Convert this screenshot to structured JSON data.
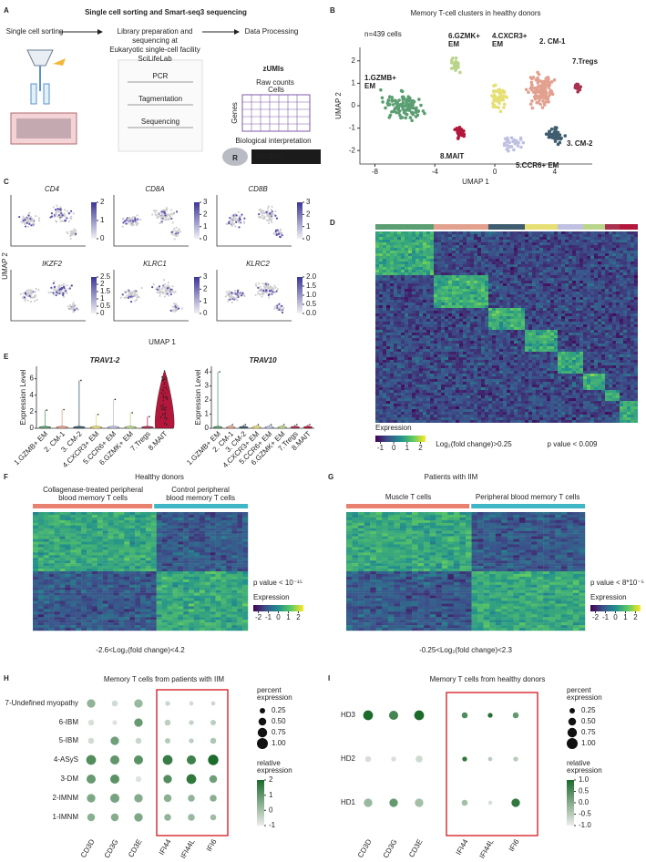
{
  "figure": {
    "A": {
      "label": "A",
      "title": "Single cell sorting and Smart-seq3 sequencing",
      "steps": [
        [
          "Single cell sorting"
        ],
        [
          "Library preparation and",
          "sequencing at",
          "Eukaryotic single-cell facility",
          "SciLifeLab"
        ],
        [
          "Data Processing"
        ]
      ],
      "schematic_steps": [
        "PCR",
        "Tagmentation",
        "Sequencing"
      ],
      "zumis": "zUMIs",
      "raw_counts": "Raw counts",
      "cells": "Cells",
      "genes": "Genes",
      "interpretation": "Biological interpretation",
      "r_logo": "R",
      "seurat": "SEURAT"
    },
    "B": {
      "label": "B",
      "title": "Memory T-cell clusters in healthy donors",
      "n_cells": "n=439 cells",
      "xlabel": "UMAP 1",
      "ylabel": "UMAP 2",
      "xlim": [
        -9,
        6.5
      ],
      "ylim": [
        -2.6,
        2.6
      ],
      "xticks": [
        -8,
        -4,
        0,
        4
      ],
      "yticks": [
        -2,
        -1,
        0,
        1,
        2
      ],
      "clusters": [
        {
          "label": [
            "1.GZMB+",
            "EM"
          ],
          "color": "#5b9e72"
        },
        {
          "label": [
            "2. CM-1"
          ],
          "color": "#e2a08f"
        },
        {
          "label": [
            "3. CM-2"
          ],
          "color": "#3f5d6f"
        },
        {
          "label": [
            "4.CXCR3+",
            "EM"
          ],
          "color": "#e6df74"
        },
        {
          "label": [
            "5.CCR6+ EM"
          ],
          "color": "#bfc0e2"
        },
        {
          "label": [
            "6.GZMK+",
            "EM"
          ],
          "color": "#b9d58a"
        },
        {
          "label": [
            "7.Tregs"
          ],
          "color": "#a8324f"
        },
        {
          "label": [
            "8.MAIT"
          ],
          "color": "#b3173b"
        }
      ]
    },
    "C": {
      "label": "C",
      "xlabel": "UMAP 1",
      "ylabel": "UMAP 2",
      "panels": [
        {
          "gene": "CD4",
          "scale_ticks": [
            0,
            1,
            2
          ]
        },
        {
          "gene": "CD8A",
          "scale_ticks": [
            0,
            1,
            2,
            3
          ]
        },
        {
          "gene": "CD8B",
          "scale_ticks": [
            0,
            1,
            2,
            3
          ]
        },
        {
          "gene": "IKZF2",
          "scale_ticks": [
            0,
            0.5,
            1,
            1.5,
            2,
            2.5
          ]
        },
        {
          "gene": "KLRC1",
          "scale_ticks": [
            0,
            1,
            2,
            3
          ]
        },
        {
          "gene": "KLRC2",
          "scale_ticks": [
            {
              "value": 0,
              "label": "0.0"
            },
            0.5,
            {
              "value": 1,
              "label": "1.0"
            },
            1.5,
            {
              "value": 2,
              "label": "2.0"
            }
          ]
        }
      ]
    },
    "D": {
      "label": "D",
      "legend_title": "Expression",
      "legend_ticks": [
        -1,
        0,
        1,
        2
      ],
      "fold_change": "Log₂(fold change)>0.25",
      "pvalue": "p value < 0.009"
    },
    "E": {
      "label": "E",
      "ylabel": "Expression Level",
      "categories": [
        "1.GZMB+ EM",
        "2. CM-1",
        "3. CM-2",
        "4.CXCR3+ EM",
        "5.CCR6+ EM",
        "6.GZMK+ EM",
        "7.Tregs",
        "8.MAIT"
      ],
      "plots": [
        {
          "gene": "TRAV1-2",
          "ylim": [
            0,
            7.5
          ],
          "yticks": [
            0,
            2,
            4,
            6
          ]
        },
        {
          "gene": "TRAV10",
          "ylim": [
            0,
            4.4
          ],
          "yticks": [
            0,
            1,
            2,
            3,
            4
          ]
        }
      ]
    },
    "F": {
      "label": "F",
      "title": "Healthy donors",
      "group1": [
        "Collagenase-treated peripheral",
        "blood memory T cells"
      ],
      "group2": [
        "Control peripheral",
        "blood memory T cells"
      ],
      "pvalue": "p value < 10⁻¹⁵",
      "legend_title": "Expression",
      "legend_ticks": [
        -2,
        -1,
        0,
        1,
        2
      ],
      "fold_change": "-2.6<Log₂(fold change)<4.2"
    },
    "G": {
      "label": "G",
      "title": "Patients with IIM",
      "group1": [
        "Muscle T cells"
      ],
      "group2": [
        "Peripheral blood memory T cells"
      ],
      "pvalue": "p value < 8*10⁻⁵",
      "legend_title": "Expression",
      "legend_ticks": [
        -2,
        -1,
        0,
        1,
        2
      ],
      "fold_change": "-0.25<Log₂(fold change)<2.3"
    },
    "H": {
      "label": "H",
      "title": "Memory T cells from patients with IIM",
      "rows": [
        "7-Undefined myopathy",
        "6-IBM",
        "5-IBM",
        "4-ASyS",
        "3-DM",
        "2-IMNM",
        "1-IMNM"
      ],
      "columns": [
        "CD3D",
        "CD3G",
        "CD3E",
        "IFI44",
        "IFI44L",
        "IFI6"
      ],
      "percent": [
        [
          0.6,
          0.3,
          0.6,
          0.2,
          0.15,
          0.15
        ],
        [
          0.3,
          0.2,
          0.6,
          0.3,
          0.2,
          0.25
        ],
        [
          0.3,
          0.6,
          0.3,
          0.25,
          0.2,
          0.3
        ],
        [
          0.8,
          0.7,
          0.7,
          0.8,
          0.7,
          0.9
        ],
        [
          0.7,
          0.7,
          0.3,
          0.6,
          0.8,
          0.5
        ],
        [
          0.6,
          0.7,
          0.6,
          0.5,
          0.4,
          0.4
        ],
        [
          0.5,
          0.5,
          0.6,
          0.4,
          0.4,
          0.3
        ]
      ],
      "relative": [
        [
          0.3,
          -0.6,
          0.2,
          -0.5,
          -0.6,
          -0.5
        ],
        [
          -0.7,
          -0.8,
          0.9,
          -0.3,
          -0.4,
          -0.3
        ],
        [
          -0.6,
          0.8,
          -0.5,
          -0.2,
          -0.3,
          -0.1
        ],
        [
          1.2,
          1.0,
          1.1,
          1.6,
          1.5,
          2.0
        ],
        [
          0.9,
          1.1,
          -0.8,
          1.2,
          1.7,
          0.8
        ],
        [
          0.6,
          0.7,
          0.5,
          0.4,
          0.3,
          0.4
        ],
        [
          0.4,
          0.5,
          0.6,
          0.3,
          0.2,
          0.1
        ]
      ],
      "size_title": [
        "percent",
        "expression"
      ],
      "size_ticks": [
        0.25,
        {
          "value": 0.5,
          "label": "0.50"
        },
        0.75,
        {
          "value": 1,
          "label": "1.00"
        }
      ],
      "color_title": [
        "relative",
        "expression"
      ],
      "color_ticks": [
        2,
        1,
        0,
        -1
      ]
    },
    "I": {
      "label": "I",
      "title": "Memory T cells from healthy donors",
      "rows": [
        "HD3",
        "HD2",
        "HD1"
      ],
      "columns": [
        "CD3D",
        "CD3G",
        "CD3E",
        "IFI44",
        "IFI44L",
        "IFI6"
      ],
      "percent": [
        [
          0.8,
          0.7,
          0.8,
          0.3,
          0.2,
          0.3
        ],
        [
          0.3,
          0.2,
          0.4,
          0.2,
          0.15,
          0.2
        ],
        [
          0.6,
          0.6,
          0.6,
          0.3,
          0.15,
          0.6
        ]
      ],
      "relative": [
        [
          1.0,
          0.6,
          1.0,
          0.5,
          0.9,
          0.3
        ],
        [
          -0.8,
          -0.8,
          -0.7,
          0.8,
          -0.5,
          -0.5
        ],
        [
          -0.2,
          0.3,
          -0.3,
          -0.3,
          -0.8,
          0.8
        ]
      ],
      "size_title": [
        "percent",
        "expression"
      ],
      "size_ticks": [
        0.25,
        {
          "value": 0.5,
          "label": "0.50"
        },
        0.75,
        {
          "value": 1,
          "label": "1.00"
        }
      ],
      "color_title": [
        "relative",
        "expression"
      ],
      "color_ticks": [
        {
          "value": 1,
          "label": "1.0"
        },
        0.5,
        {
          "value": 0,
          "label": "0.0"
        },
        -0.5,
        {
          "value": -1,
          "label": "-1.0"
        }
      ]
    }
  }
}
